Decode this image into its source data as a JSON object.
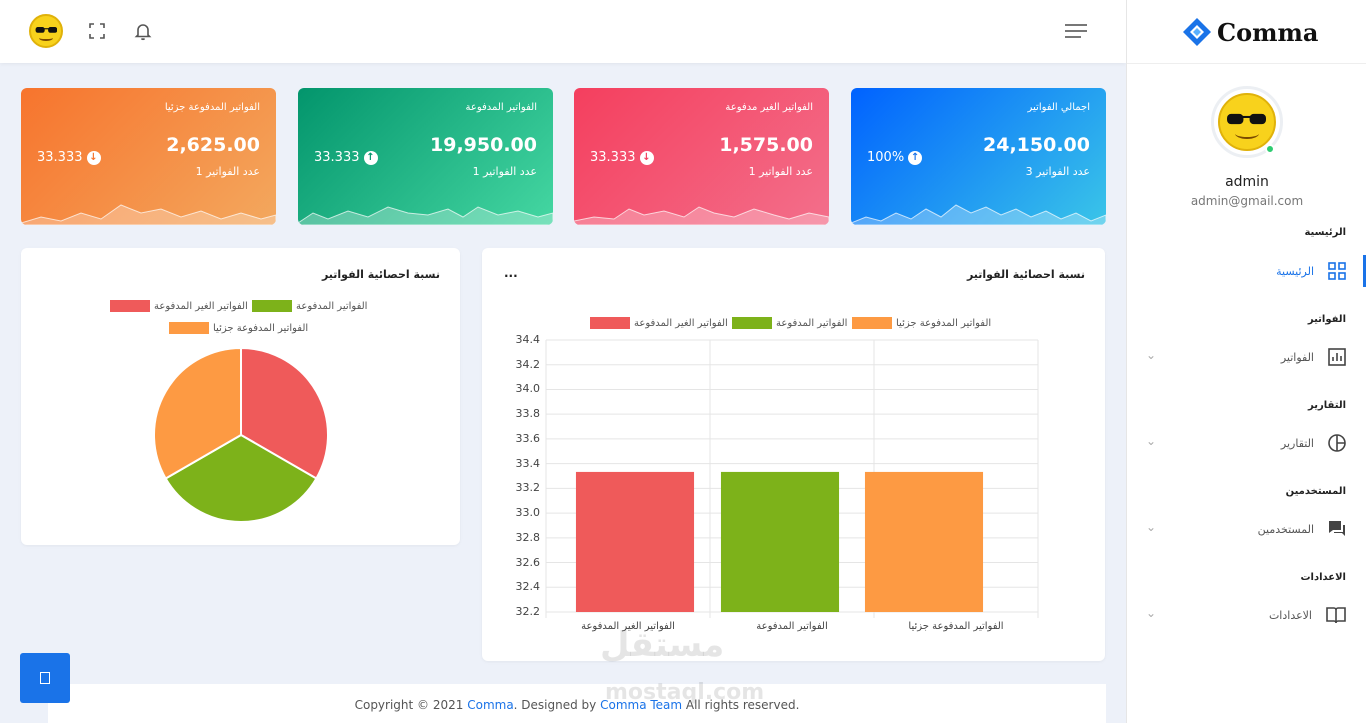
{
  "app": {
    "logo_text": "Comma"
  },
  "user": {
    "name": "admin",
    "email": "admin@gmail.com"
  },
  "sidebar": {
    "sections": [
      {
        "title": "الرئيسية",
        "item": "الرئيسية",
        "icon": "dashboard-icon",
        "active": true
      },
      {
        "title": "الفواتير",
        "item": "الفواتير",
        "icon": "bar-chart-icon"
      },
      {
        "title": "التقارير",
        "item": "التقارير",
        "icon": "pie-chart-icon"
      },
      {
        "title": "المستخدمين",
        "item": "المستخدمين",
        "icon": "chat-icon"
      },
      {
        "title": "الاعدادات",
        "item": "الاعدادات",
        "icon": "book-icon"
      }
    ]
  },
  "cards": [
    {
      "title": "اجمالي الفواتير",
      "amount": "24,150.00",
      "count": "عدد الفواتير 3",
      "percent": "100%",
      "trend": "up",
      "color_from": "#0062ff",
      "color_to": "#3ac5e8"
    },
    {
      "title": "الفواتير الغير مدفوعة",
      "amount": "1,575.00",
      "count": "عدد الفواتير 1",
      "percent": "33.333",
      "trend": "down",
      "color_from": "#f43f5e",
      "color_to": "#f36f8b"
    },
    {
      "title": "الفواتير المدفوعة",
      "amount": "19,950.00",
      "count": "عدد الفواتير 1",
      "percent": "33.333",
      "trend": "up",
      "color_from": "#03956c",
      "color_to": "#45d7a2"
    },
    {
      "title": "الفواتير المدفوعة جزئيا",
      "amount": "2,625.00",
      "count": "عدد الفواتير 1",
      "percent": "33.333",
      "trend": "down",
      "color_from": "#f7742d",
      "color_to": "#f3a85e"
    }
  ],
  "bar_panel": {
    "title": "نسبة احصائية الفواتير",
    "menu": "..."
  },
  "pie_panel": {
    "title": "نسبة احصائية الفواتير"
  },
  "footer": {
    "prefix": "Copyright © 2021 ",
    "brand": "Comma",
    "mid": ". Designed by ",
    "team": "Comma Team",
    "suffix": " All rights reserved."
  },
  "watermark": {
    "line1": "مستقل",
    "line2": "mostaql.com"
  },
  "chart_data": [
    {
      "type": "bar",
      "title": "نسبة احصائية الفواتير",
      "categories": [
        "الفواتير الغير المدفوعة",
        "الفواتير المدفوعة",
        "الفواتير المدفوعة جزئيا"
      ],
      "values": [
        33.333,
        33.333,
        33.333
      ],
      "colors": [
        "#ef5a5a",
        "#7db21a",
        "#fd9a43"
      ],
      "legend": [
        "الفواتير الغير المدفوعة",
        "الفواتير المدفوعة",
        "الفواتير المدفوعة جزئيا"
      ],
      "legend_position": "top",
      "yticks": [
        "34.4",
        "34.2",
        "34.0",
        "33.8",
        "33.6",
        "33.4",
        "33.2",
        "33.0",
        "32.8",
        "32.6",
        "32.4",
        "32.2"
      ],
      "ylim": [
        32.2,
        34.4
      ],
      "grid": true
    },
    {
      "type": "pie",
      "title": "نسبة احصائية الفواتير",
      "labels": [
        "الفواتير الغير المدفوعة",
        "الفواتير المدفوعة",
        "الفواتير المدفوعة جزئيا"
      ],
      "values": [
        33.333,
        33.333,
        33.333
      ],
      "colors": [
        "#ef5a5a",
        "#7db21a",
        "#fd9a43"
      ],
      "legend_position": "top"
    }
  ]
}
